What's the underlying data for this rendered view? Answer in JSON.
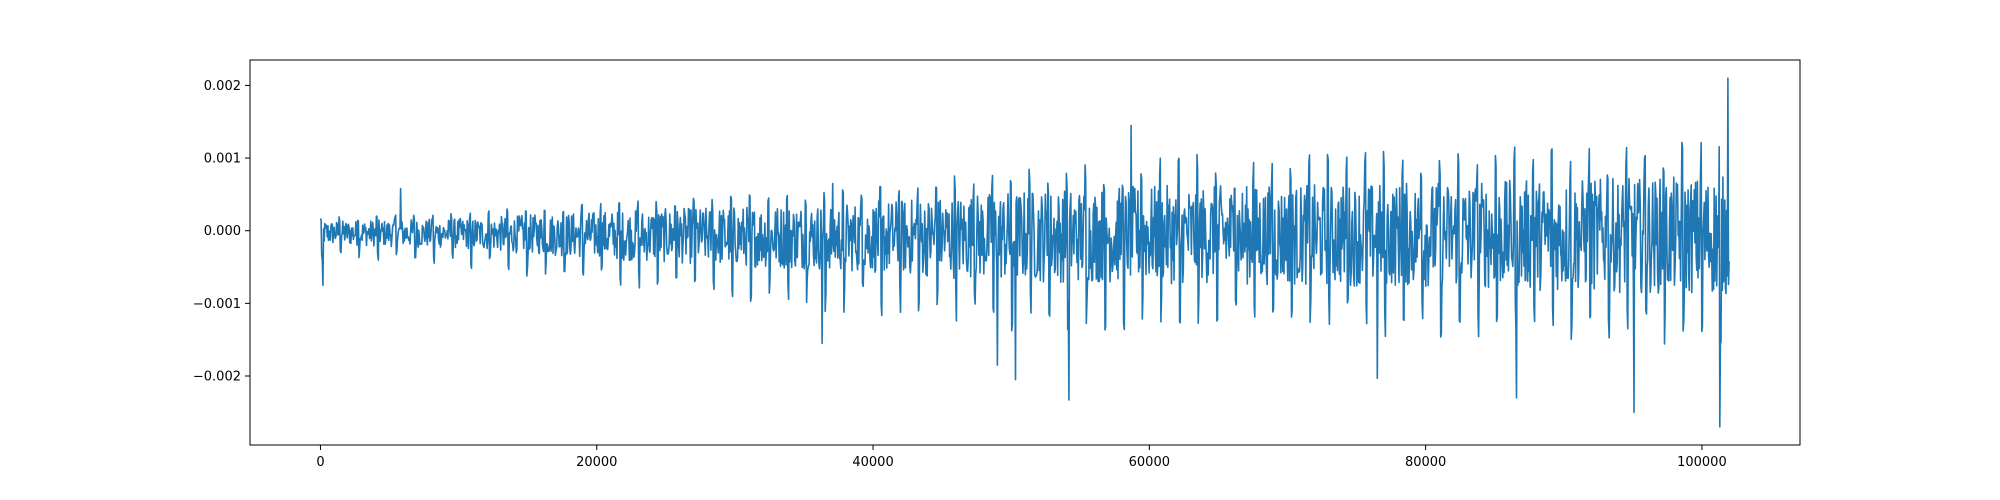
{
  "chart_data": {
    "type": "line",
    "title": "",
    "xlabel": "",
    "ylabel": "",
    "xlim": [
      -5100,
      107100
    ],
    "ylim": [
      -0.00295,
      0.00235
    ],
    "x_ticks": [
      0,
      20000,
      40000,
      60000,
      80000,
      100000
    ],
    "x_tick_labels": [
      "0",
      "20000",
      "40000",
      "60000",
      "80000",
      "100000"
    ],
    "y_ticks": [
      0.002,
      0.001,
      0.0,
      -0.001,
      -0.002
    ],
    "y_tick_labels": [
      "0.002",
      "0.001",
      "0.000",
      "−0.001",
      "−0.002"
    ],
    "grid": false,
    "legend": "none",
    "series": [
      {
        "color": "#1f77b4",
        "x_start": 0,
        "x_end": 102000,
        "approx_beat_period": 1350,
        "envelope": {
          "x": [
            0,
            10000,
            20000,
            30000,
            40000,
            50000,
            60000,
            70000,
            80000,
            90000,
            100000,
            102000
          ],
          "upper": [
            0.0002,
            0.00025,
            0.0004,
            0.0005,
            0.0006,
            0.0009,
            0.00105,
            0.00105,
            0.00115,
            0.0012,
            0.00125,
            0.0013
          ],
          "lower": [
            -0.0004,
            -0.0005,
            -0.0008,
            -0.001,
            -0.0012,
            -0.0014,
            -0.0014,
            -0.00145,
            -0.0015,
            -0.0016,
            -0.0017,
            -0.0017
          ]
        },
        "peaks": [
          {
            "x": 5800,
            "y": 0.00058
          },
          {
            "x": 37100,
            "y": 0.00065
          },
          {
            "x": 58700,
            "y": 0.00145
          },
          {
            "x": 101900,
            "y": 0.0021
          }
        ],
        "troughs": [
          {
            "x": 200,
            "y": -0.00075
          },
          {
            "x": 36300,
            "y": -0.00155
          },
          {
            "x": 49000,
            "y": -0.00185
          },
          {
            "x": 50300,
            "y": -0.00205
          },
          {
            "x": 54200,
            "y": -0.00233
          },
          {
            "x": 76500,
            "y": -0.00203
          },
          {
            "x": 86600,
            "y": -0.0023
          },
          {
            "x": 95100,
            "y": -0.0025
          },
          {
            "x": 101300,
            "y": -0.0027
          }
        ]
      }
    ]
  }
}
